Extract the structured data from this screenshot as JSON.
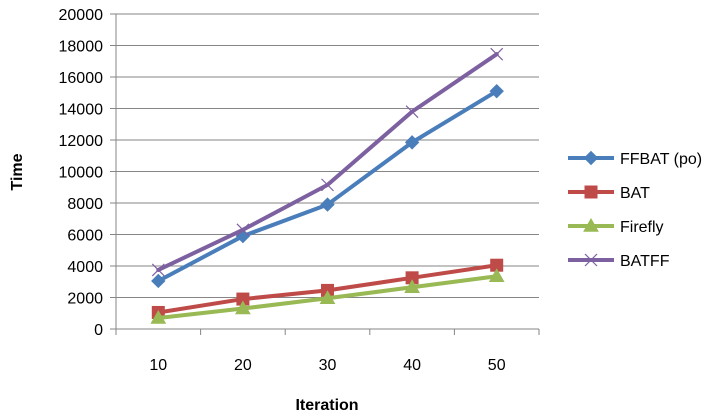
{
  "chart_data": {
    "type": "line",
    "title": "",
    "xlabel": "Iteration",
    "ylabel": "Time",
    "categories": [
      "10",
      "20",
      "30",
      "40",
      "50"
    ],
    "ylim": [
      0,
      20000
    ],
    "yticks": [
      "0",
      "2000",
      "4000",
      "6000",
      "8000",
      "10000",
      "12000",
      "14000",
      "16000",
      "18000",
      "20000"
    ],
    "grid": true,
    "legend_position": "right",
    "series": [
      {
        "name": "FFBAT (po)",
        "values": [
          3050,
          5900,
          7900,
          11850,
          15100
        ],
        "color": "#4a7ebb",
        "marker": "diamond"
      },
      {
        "name": "BAT",
        "values": [
          1050,
          1900,
          2450,
          3250,
          4050
        ],
        "color": "#be4b48",
        "marker": "square"
      },
      {
        "name": "Firefly",
        "values": [
          700,
          1300,
          1950,
          2650,
          3350
        ],
        "color": "#98b954",
        "marker": "triangle"
      },
      {
        "name": "BATFF",
        "values": [
          3750,
          6300,
          9150,
          13800,
          17450
        ],
        "color": "#7d60a0",
        "marker": "x"
      }
    ]
  }
}
